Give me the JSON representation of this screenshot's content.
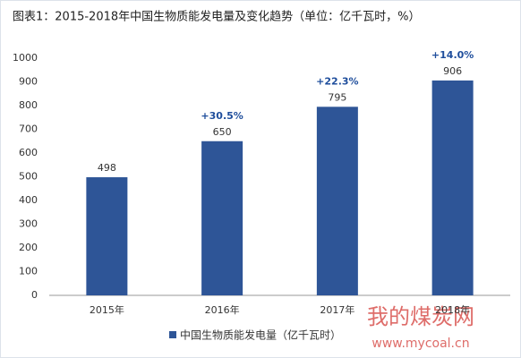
{
  "chart_data": {
    "type": "bar",
    "title": "图表1：2015-2018年中国生物质能发电量及变化趋势（单位：亿千瓦时，%）",
    "categories": [
      "2015年",
      "2016年",
      "2017年",
      "2018年"
    ],
    "series": [
      {
        "name": "中国生物质能发电量（亿千瓦时）",
        "color": "#2e5597",
        "values": [
          498,
          650,
          795,
          906
        ]
      }
    ],
    "growth_labels": [
      null,
      "+30.5%",
      "+22.3%",
      "+14.0%"
    ],
    "ylim": [
      0,
      1000
    ],
    "yticks": [
      0,
      100,
      200,
      300,
      400,
      500,
      600,
      700,
      800,
      900,
      1000
    ],
    "grid": false,
    "legend": "bottom",
    "watermark": [
      "我的煤炭网",
      "www.mycoal.cn"
    ]
  }
}
